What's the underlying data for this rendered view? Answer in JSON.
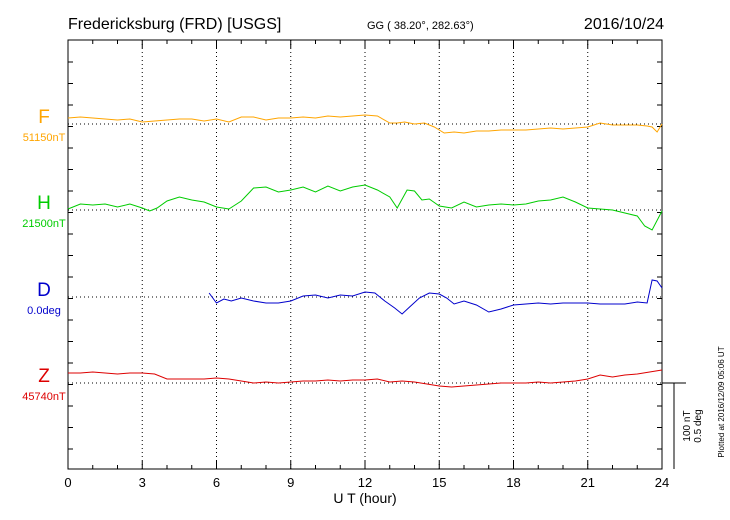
{
  "header": {
    "title": "Fredericksburg (FRD)  [USGS]",
    "coords": "GG ( 38.20°, 282.63°)",
    "date": "2016/10/24"
  },
  "plotted_note": "Plotted at 2016/12/09 05:06 UT",
  "scale_labels": [
    "100 nT",
    "0.5 deg"
  ],
  "chart_data": {
    "type": "line",
    "xlabel": "U T (hour)",
    "xlim": [
      0,
      24
    ],
    "xticks": [
      0,
      3,
      6,
      9,
      12,
      15,
      18,
      21,
      24
    ],
    "series": [
      {
        "name": "F",
        "baseline_label": "51150nT",
        "color": "#ffa500",
        "x": [
          0,
          0.5,
          1,
          1.5,
          2,
          2.5,
          3,
          3.5,
          4,
          4.5,
          5,
          5.5,
          6,
          6.5,
          7,
          7.5,
          8,
          8.5,
          9,
          9.5,
          10,
          10.5,
          11,
          11.5,
          12,
          12.5,
          13,
          13.3,
          13.6,
          14,
          14.4,
          14.8,
          15.2,
          15.6,
          16,
          16.5,
          17,
          17.5,
          18,
          18.5,
          19,
          19.5,
          20,
          20.5,
          21,
          21.5,
          22,
          22.5,
          23,
          23.4,
          23.6,
          23.8,
          24
        ],
        "values": [
          6,
          7,
          6,
          5,
          4,
          5,
          2,
          3,
          4,
          5,
          5,
          3,
          5,
          2,
          7,
          7,
          4,
          6,
          6,
          7,
          6,
          8,
          7,
          8,
          9,
          8,
          1,
          1,
          2,
          0,
          1,
          -3,
          -9,
          -8,
          -9,
          -7,
          -7,
          -6,
          -6,
          -6,
          -5,
          -4,
          -5,
          -4,
          -3,
          1,
          -1,
          -1,
          -1,
          -2,
          -3,
          -8,
          0
        ]
      },
      {
        "name": "H",
        "baseline_label": "21500nT",
        "color": "#00cc00",
        "x": [
          0,
          0.5,
          1,
          1.5,
          2,
          2.5,
          3,
          3.3,
          3.6,
          4,
          4.5,
          5,
          5.5,
          6,
          6.5,
          7,
          7.5,
          8,
          8.5,
          9,
          9.5,
          10,
          10.5,
          11,
          11.5,
          12,
          12.5,
          13,
          13.3,
          13.7,
          14,
          14.3,
          14.6,
          15,
          15.5,
          16,
          16.5,
          17,
          17.5,
          18,
          18.5,
          19,
          19.5,
          20,
          20.5,
          21,
          21.5,
          22,
          22.5,
          23,
          23.3,
          23.6,
          24
        ],
        "values": [
          1,
          6,
          5,
          6,
          3,
          6,
          2,
          -1,
          2,
          9,
          13,
          10,
          8,
          3,
          1,
          9,
          22,
          23,
          18,
          20,
          23,
          18,
          24,
          19,
          23,
          25,
          20,
          13,
          2,
          20,
          19,
          10,
          11,
          4,
          2,
          8,
          3,
          5,
          6,
          5,
          6,
          9,
          10,
          13,
          8,
          2,
          1,
          0,
          -3,
          -6,
          -16,
          -20,
          -1
        ]
      },
      {
        "name": "D",
        "baseline_label": "0.0deg",
        "color": "#0000cc",
        "x": [
          5.7,
          6,
          6.3,
          6.6,
          7,
          7.5,
          8,
          8.5,
          9,
          9.5,
          10,
          10.5,
          11,
          11.5,
          12,
          12.4,
          12.8,
          13.2,
          13.5,
          13.8,
          14.2,
          14.6,
          15,
          15.3,
          15.6,
          16,
          16.5,
          17,
          17.5,
          18,
          18.5,
          19,
          19.5,
          20,
          20.5,
          21,
          21.5,
          22,
          22.5,
          23,
          23.4,
          23.6,
          23.8,
          24
        ],
        "values": [
          4,
          -6,
          -2,
          -4,
          -1,
          -4,
          -6,
          -6,
          -4,
          1,
          2,
          -1,
          2,
          1,
          5,
          4,
          -4,
          -11,
          -17,
          -10,
          -1,
          4,
          3,
          -1,
          -7,
          -4,
          -8,
          -15,
          -12,
          -8,
          -7,
          -6,
          -7,
          -6,
          -6,
          -6,
          -7,
          -7,
          -7,
          -5,
          -6,
          17,
          16,
          9
        ]
      },
      {
        "name": "Z",
        "baseline_label": "45740nT",
        "color": "#dd0000",
        "x": [
          0,
          0.5,
          1,
          1.5,
          2,
          2.5,
          3,
          3.5,
          4,
          4.5,
          5,
          5.5,
          6,
          6.5,
          7,
          7.5,
          8,
          8.5,
          9,
          9.5,
          10,
          10.5,
          11,
          11.5,
          12,
          12.5,
          13,
          13.5,
          14,
          14.5,
          15,
          15.5,
          16,
          16.5,
          17,
          17.5,
          18,
          18.5,
          19,
          19.5,
          20,
          20.5,
          21,
          21.5,
          22,
          22.5,
          23,
          23.5,
          24
        ],
        "values": [
          10,
          10,
          11,
          10,
          9,
          10,
          10,
          9,
          4,
          4,
          4,
          4,
          5,
          4,
          2,
          0,
          1,
          0,
          1,
          2,
          2,
          3,
          2,
          3,
          3,
          4,
          1,
          2,
          1,
          -1,
          -3,
          -4,
          -3,
          -2,
          -1,
          0,
          0,
          0,
          1,
          0,
          1,
          2,
          4,
          8,
          6,
          8,
          9,
          11,
          13
        ]
      }
    ]
  },
  "colors": {
    "axis": "#000000",
    "grid": "#000000"
  }
}
